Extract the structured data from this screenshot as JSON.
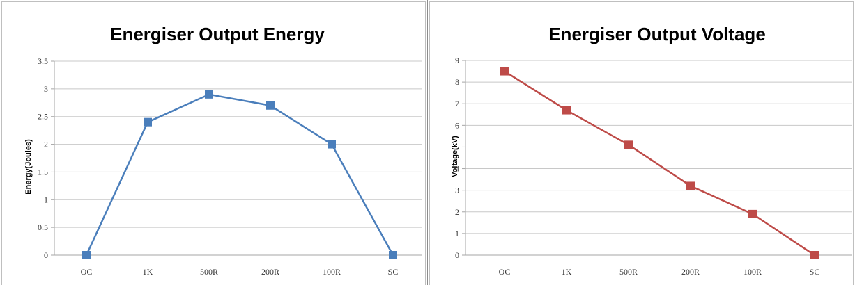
{
  "chart_data": [
    {
      "type": "line",
      "title": "Energiser Output Energy",
      "xlabel": "",
      "ylabel": "Energy(Joules)",
      "categories": [
        "OC",
        "1K",
        "500R",
        "200R",
        "100R",
        "SC"
      ],
      "ylim": [
        0,
        3.5
      ],
      "yticks": [
        "0",
        "0.5",
        "1",
        "1.5",
        "2",
        "2.5",
        "3",
        "3.5"
      ],
      "grid": true,
      "legend": "none",
      "series": [
        {
          "values": [
            0,
            2.4,
            2.9,
            2.7,
            2.0,
            0
          ],
          "color": "#4a7ebb",
          "marker": "square"
        }
      ]
    },
    {
      "type": "line",
      "title": "Energiser Output Voltage",
      "xlabel": "",
      "ylabel": "Voltage(kV)",
      "categories": [
        "OC",
        "1K",
        "500R",
        "200R",
        "100R",
        "SC"
      ],
      "ylim": [
        0,
        9
      ],
      "yticks": [
        "0",
        "1",
        "2",
        "3",
        "4",
        "5",
        "6",
        "7",
        "8",
        "9"
      ],
      "grid": true,
      "legend": "none",
      "series": [
        {
          "values": [
            8.5,
            6.7,
            5.1,
            3.2,
            1.9,
            0
          ],
          "color": "#be4b48",
          "marker": "square"
        }
      ]
    }
  ]
}
